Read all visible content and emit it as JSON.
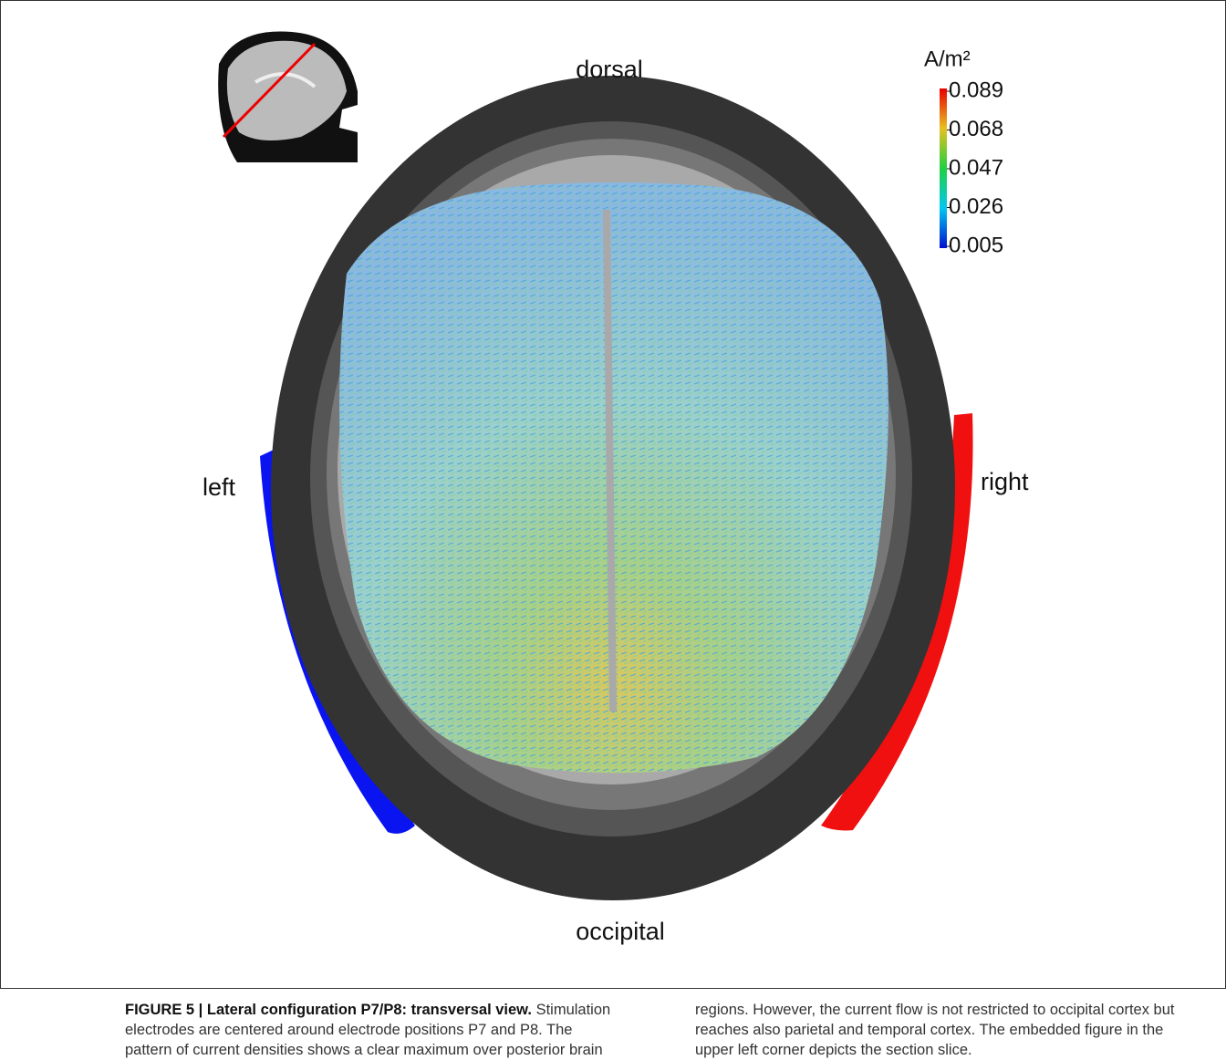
{
  "labels": {
    "top": "dorsal",
    "bottom": "occipital",
    "left": "left",
    "right": "right"
  },
  "colorbar": {
    "unit": "A/m²",
    "lim": [
      0.005,
      0.089
    ],
    "ticks": [
      0.089,
      0.068,
      0.047,
      0.026,
      0.005
    ],
    "colors": [
      "#0010d0",
      "#00c8f0",
      "#20d040",
      "#e8c020",
      "#e80000"
    ]
  },
  "caption": {
    "title": "FIGURE 5 | Lateral configuration P7/P8: transversal view.",
    "text": "Stimulation electrodes are centered around electrode positions P7 and P8. The pattern of current densities shows a clear maximum over posterior brain regions. However, the current flow is not restricted to occipital cortex but reaches also parietal and temporal cortex. The embedded figure in the upper left corner depicts the section slice."
  }
}
